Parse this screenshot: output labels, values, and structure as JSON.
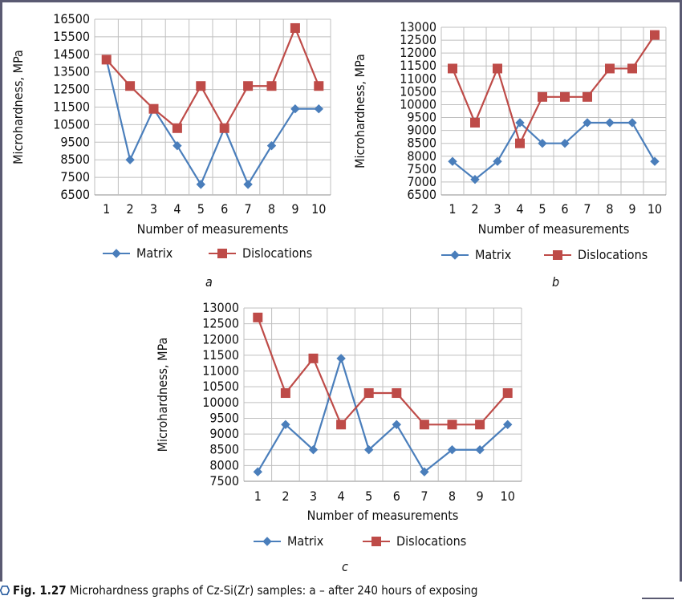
{
  "figure": {
    "number": "Fig. 1.27",
    "caption": "Microhardness graphs of Cz-Si(Zr) samples: a – after 240 hours of exposing",
    "icon": "hexagon-outline-icon"
  },
  "chart_data": [
    {
      "id": "a",
      "panel_label": "a",
      "type": "line",
      "xlabel": "Number of measurements",
      "ylabel": "Microhardness, MPa",
      "categories": [
        "1",
        "2",
        "3",
        "4",
        "5",
        "6",
        "7",
        "8",
        "9",
        "10"
      ],
      "yticks": [
        "6500",
        "7500",
        "8500",
        "9500",
        "10500",
        "11500",
        "12500",
        "13500",
        "14500",
        "15500",
        "16500"
      ],
      "ylim": [
        6500,
        16500
      ],
      "grid": true,
      "legend_position": "bottom",
      "series": [
        {
          "name": "Matrix",
          "color": "#4a7ebb",
          "marker": "diamond",
          "values": [
            14200,
            8500,
            11400,
            9300,
            7100,
            10300,
            7100,
            9300,
            11400,
            11400
          ]
        },
        {
          "name": "Dislocations",
          "color": "#be4b48",
          "marker": "square",
          "values": [
            14200,
            12700,
            11400,
            10300,
            12700,
            10300,
            12700,
            12700,
            16000,
            12700
          ]
        }
      ]
    },
    {
      "id": "b",
      "panel_label": "b",
      "type": "line",
      "xlabel": "Number of measurements",
      "ylabel": "Microhardness, MPa",
      "categories": [
        "1",
        "2",
        "3",
        "4",
        "5",
        "6",
        "7",
        "8",
        "9",
        "10"
      ],
      "yticks": [
        "6500",
        "7000",
        "7500",
        "8000",
        "8500",
        "9000",
        "9500",
        "10000",
        "10500",
        "11000",
        "11500",
        "12000",
        "12500",
        "13000"
      ],
      "ylim": [
        6500,
        13000
      ],
      "grid": true,
      "legend_position": "bottom",
      "series": [
        {
          "name": "Matrix",
          "color": "#4a7ebb",
          "marker": "diamond",
          "values": [
            7800,
            7100,
            7800,
            9300,
            8500,
            8500,
            9300,
            9300,
            9300,
            7800
          ]
        },
        {
          "name": "Dislocations",
          "color": "#be4b48",
          "marker": "square",
          "values": [
            11400,
            9300,
            11400,
            8500,
            10300,
            10300,
            10300,
            11400,
            11400,
            12700
          ]
        }
      ]
    },
    {
      "id": "c",
      "panel_label": "c",
      "type": "line",
      "xlabel": "Number of measurements",
      "ylabel": "Microhardness, MPa",
      "categories": [
        "1",
        "2",
        "3",
        "4",
        "5",
        "6",
        "7",
        "8",
        "9",
        "10"
      ],
      "yticks": [
        "7500",
        "8000",
        "8500",
        "9000",
        "9500",
        "10000",
        "10500",
        "11000",
        "11500",
        "12000",
        "12500",
        "13000"
      ],
      "ylim": [
        7500,
        13000
      ],
      "grid": true,
      "legend_position": "bottom",
      "series": [
        {
          "name": "Matrix",
          "color": "#4a7ebb",
          "marker": "diamond",
          "values": [
            7800,
            9300,
            8500,
            11400,
            8500,
            9300,
            7800,
            8500,
            8500,
            9300
          ]
        },
        {
          "name": "Dislocations",
          "color": "#be4b48",
          "marker": "square",
          "values": [
            12700,
            10300,
            11400,
            9300,
            10300,
            10300,
            9300,
            9300,
            9300,
            10300
          ]
        }
      ]
    }
  ]
}
